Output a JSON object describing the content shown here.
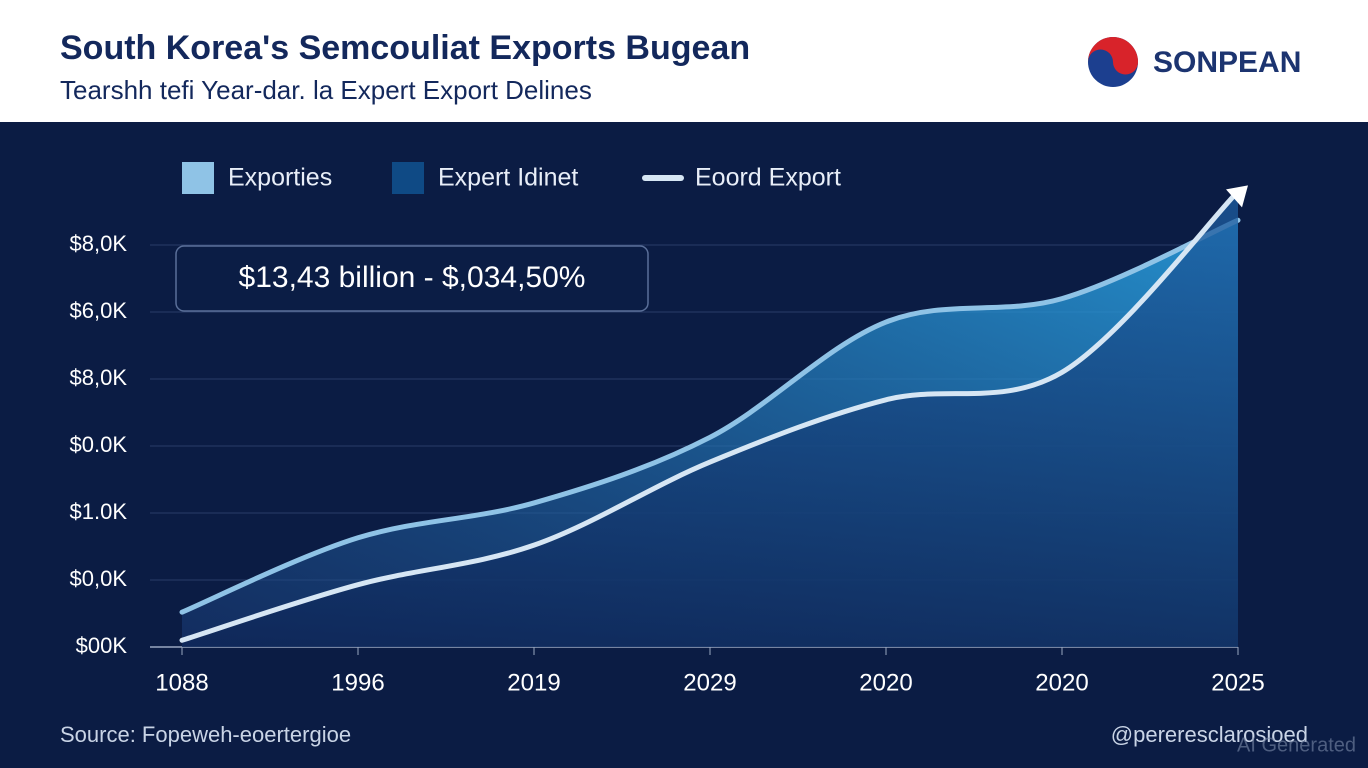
{
  "chart_data": {
    "type": "area",
    "title": "South Korea's Semcouliat Exports Bugean",
    "subtitle": "Tearshh tefi Year-dar. la Expert Export Delines",
    "brand": "SONPEAN",
    "annotation": "$13,43 billion - $,034,50%",
    "source": "Source: Fopeweh-eoertergioe",
    "handle": "@pereresclarosioed",
    "watermark": "AI Generated",
    "categories": [
      "1088",
      "1996",
      "2019",
      "2029",
      "2020",
      "2020",
      "2025"
    ],
    "series": [
      {
        "name": "Exporties",
        "color": "#8fc3e6",
        "values": [
          0.52,
          1.63,
          2.15,
          3.13,
          4.85,
          5.2,
          6.37
        ]
      },
      {
        "name": "Expert Idinet",
        "color": "#0f4a85",
        "values": [
          0.1,
          0.93,
          1.52,
          2.76,
          3.69,
          4.1,
          6.8
        ]
      },
      {
        "name": "Eoord Export",
        "color": "#d6e6f4",
        "values": [
          0.1,
          0.93,
          1.52,
          2.76,
          3.69,
          4.1,
          6.8
        ]
      }
    ],
    "ylim": [
      0,
      7
    ],
    "yticks": [
      {
        "value": 0,
        "label": "$00K"
      },
      {
        "value": 1,
        "label": "$0,0K"
      },
      {
        "value": 2,
        "label": "$1.0K"
      },
      {
        "value": 3,
        "label": "$0.0K"
      },
      {
        "value": 4,
        "label": "$8,0K"
      },
      {
        "value": 5,
        "label": "$6,0K"
      },
      {
        "value": 6,
        "label": "$8,0K"
      }
    ],
    "grid": true
  }
}
